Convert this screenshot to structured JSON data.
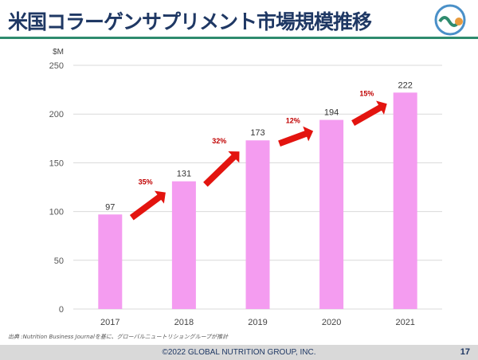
{
  "header": {
    "title": "米国コラーゲンサプリメント市場規模推移"
  },
  "chart_data": {
    "type": "bar",
    "title": "",
    "ylabel": "$M",
    "categories": [
      "2017",
      "2018",
      "2019",
      "2020",
      "2021"
    ],
    "values": [
      97,
      131,
      173,
      194,
      222
    ],
    "ylim": [
      0,
      250
    ],
    "yticks": [
      0,
      50,
      100,
      150,
      200,
      250
    ],
    "grid": true,
    "bar_color": "#f49cf0",
    "growth_annotations": [
      {
        "from": "2017",
        "to": "2018",
        "label": "35%"
      },
      {
        "from": "2018",
        "to": "2019",
        "label": "32%"
      },
      {
        "from": "2019",
        "to": "2020",
        "label": "12%"
      },
      {
        "from": "2020",
        "to": "2021",
        "label": "15%"
      }
    ],
    "arrow_color": "#e3140f"
  },
  "source": "出典 :Nutrition Business Journalを基に、グローバルニュートリショングループが推計",
  "footer": {
    "copyright": "©2022 GLOBAL NUTRITION GROUP, INC.",
    "page": "17"
  }
}
